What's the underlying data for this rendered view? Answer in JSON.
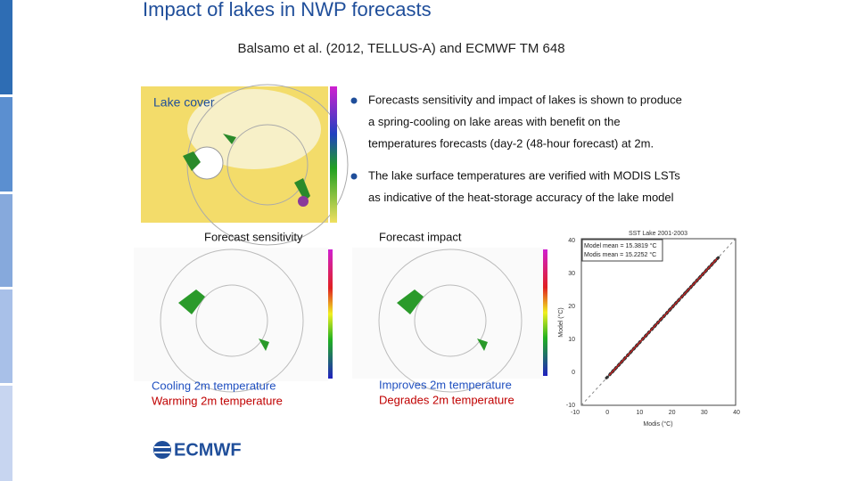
{
  "title": "Impact of lakes in NWP forecasts",
  "subtitle": "Balsamo et al. (2012, TELLUS-A) and ECMWF TM 648",
  "lake_cover_label": "Lake cover",
  "bullets": [
    [
      "Forecasts sensitivity and impact of lakes is shown to produce",
      "a spring-cooling on lake areas with benefit on the",
      "temperatures forecasts (day-2 (48-hour forecast) at 2m."
    ],
    [
      "The lake surface temperatures are verified with MODIS LSTs",
      "as indicative of the heat-storage accuracy of the lake model"
    ]
  ],
  "sensitivity": {
    "title": "Forecast sensitivity",
    "legend": [
      "Cooling 2m temperature",
      "Warming 2m temperature"
    ]
  },
  "impact": {
    "title": "Forecast impact",
    "legend": [
      "Improves 2m temperature",
      "Degrades 2m temperature"
    ]
  },
  "scatter": {
    "title": "SST Lake 2001-2003",
    "notes": [
      "Model mean = 15.3819 °C",
      "Modis mean = 15.2252 °C"
    ],
    "xlabel": "Modis (°C)",
    "ylabel": "Model (°C)",
    "xticks": [
      "-10",
      "0",
      "10",
      "20",
      "30",
      "40"
    ],
    "yticks": [
      "-10",
      "0",
      "10",
      "20",
      "30",
      "40"
    ]
  },
  "logo": "ECMWF"
}
